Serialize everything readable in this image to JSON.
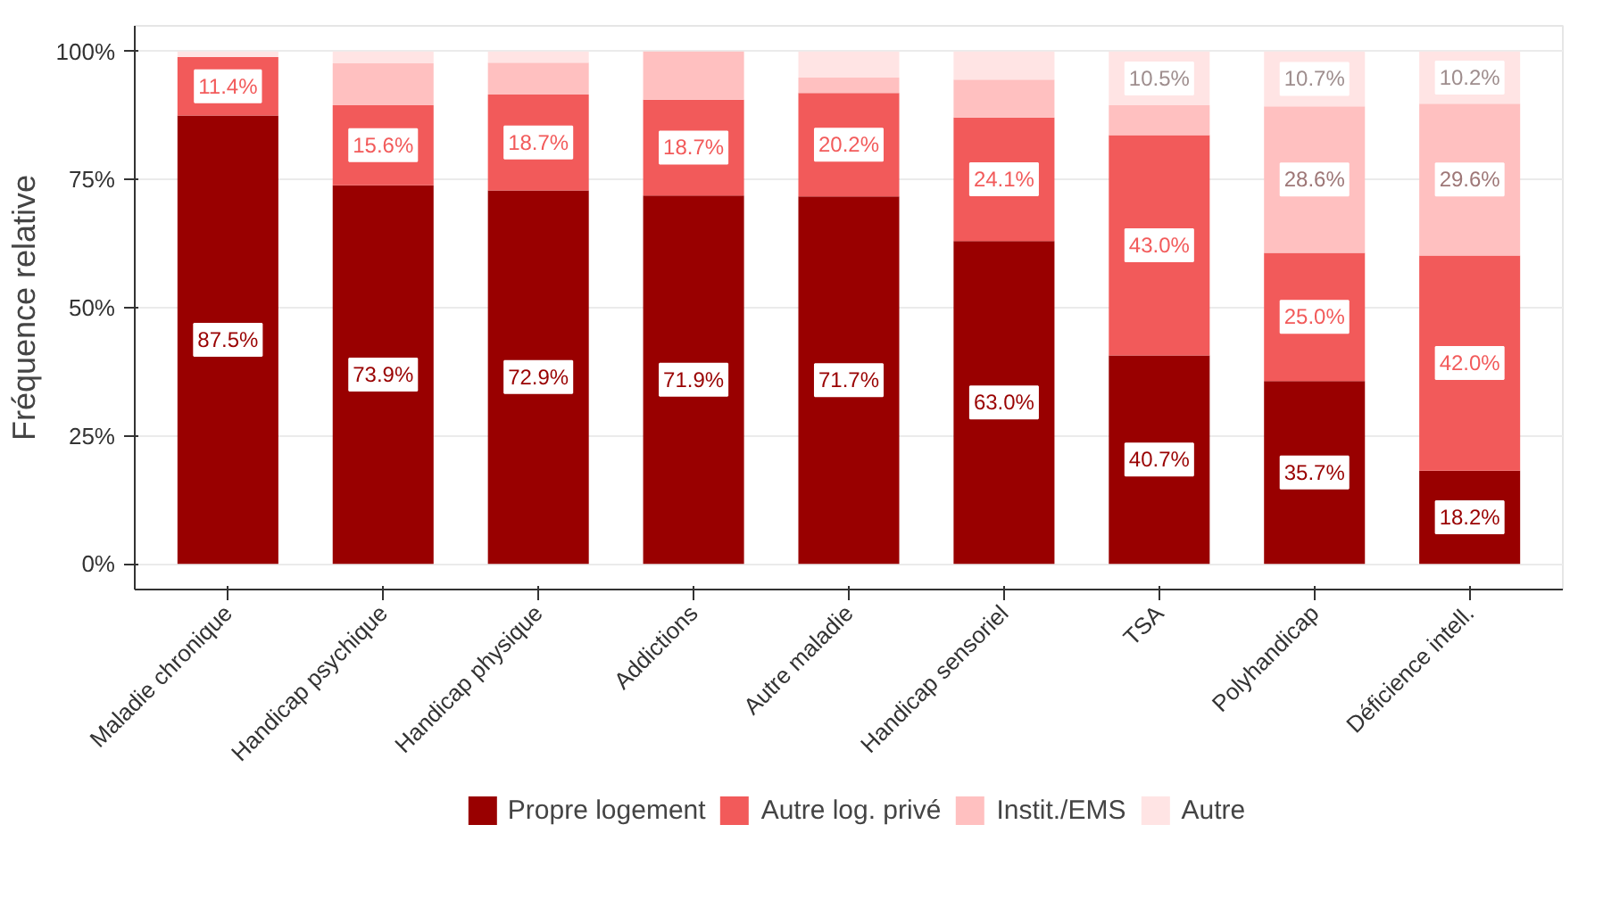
{
  "chart_data": {
    "type": "bar",
    "stacked": true,
    "ylabel": "Fréquence relative",
    "categories": [
      "Maladie chronique",
      "Handicap psychique",
      "Handicap physique",
      "Addictions",
      "Autre maladie",
      "Handicap sensoriel",
      "TSA",
      "Polyhandicap",
      "Déficience intell."
    ],
    "series": [
      {
        "name": "Propre logement",
        "color": "#990000",
        "values": [
          87.5,
          73.9,
          72.9,
          71.9,
          71.7,
          63.0,
          40.7,
          35.7,
          18.2
        ],
        "value_labels": [
          "87.5%",
          "73.9%",
          "72.9%",
          "71.9%",
          "71.7%",
          "63.0%",
          "40.7%",
          "35.7%",
          "18.2%"
        ]
      },
      {
        "name": "Autre log. privé",
        "color": "#f25a5a",
        "values": [
          11.4,
          15.6,
          18.7,
          18.7,
          20.2,
          24.1,
          43.0,
          25.0,
          42.0
        ],
        "value_labels": [
          "11.4%",
          "15.6%",
          "18.7%",
          "18.7%",
          "20.2%",
          "24.1%",
          "43.0%",
          "25.0%",
          "42.0%"
        ]
      },
      {
        "name": "Instit./EMS",
        "color": "#ffc0c0",
        "values": [
          0,
          8.2,
          6.2,
          9.4,
          3.0,
          7.4,
          5.8,
          28.6,
          29.6
        ],
        "value_labels": [
          null,
          null,
          null,
          null,
          null,
          null,
          null,
          "28.6%",
          "29.6%"
        ]
      },
      {
        "name": "Autre",
        "color": "#ffe4e4",
        "values": [
          1.1,
          2.3,
          2.2,
          0,
          5.1,
          5.5,
          10.5,
          10.7,
          10.2
        ],
        "value_labels": [
          null,
          null,
          null,
          null,
          null,
          null,
          "10.5%",
          "10.7%",
          "10.2%"
        ]
      }
    ],
    "ylim": [
      -5,
      105
    ],
    "yticks": [
      {
        "value": 0,
        "label": "0%"
      },
      {
        "value": 25,
        "label": "25%"
      },
      {
        "value": 50,
        "label": "50%"
      },
      {
        "value": 75,
        "label": "75%"
      },
      {
        "value": 100,
        "label": "100%"
      }
    ],
    "grid": "y",
    "legend": "bottom"
  }
}
